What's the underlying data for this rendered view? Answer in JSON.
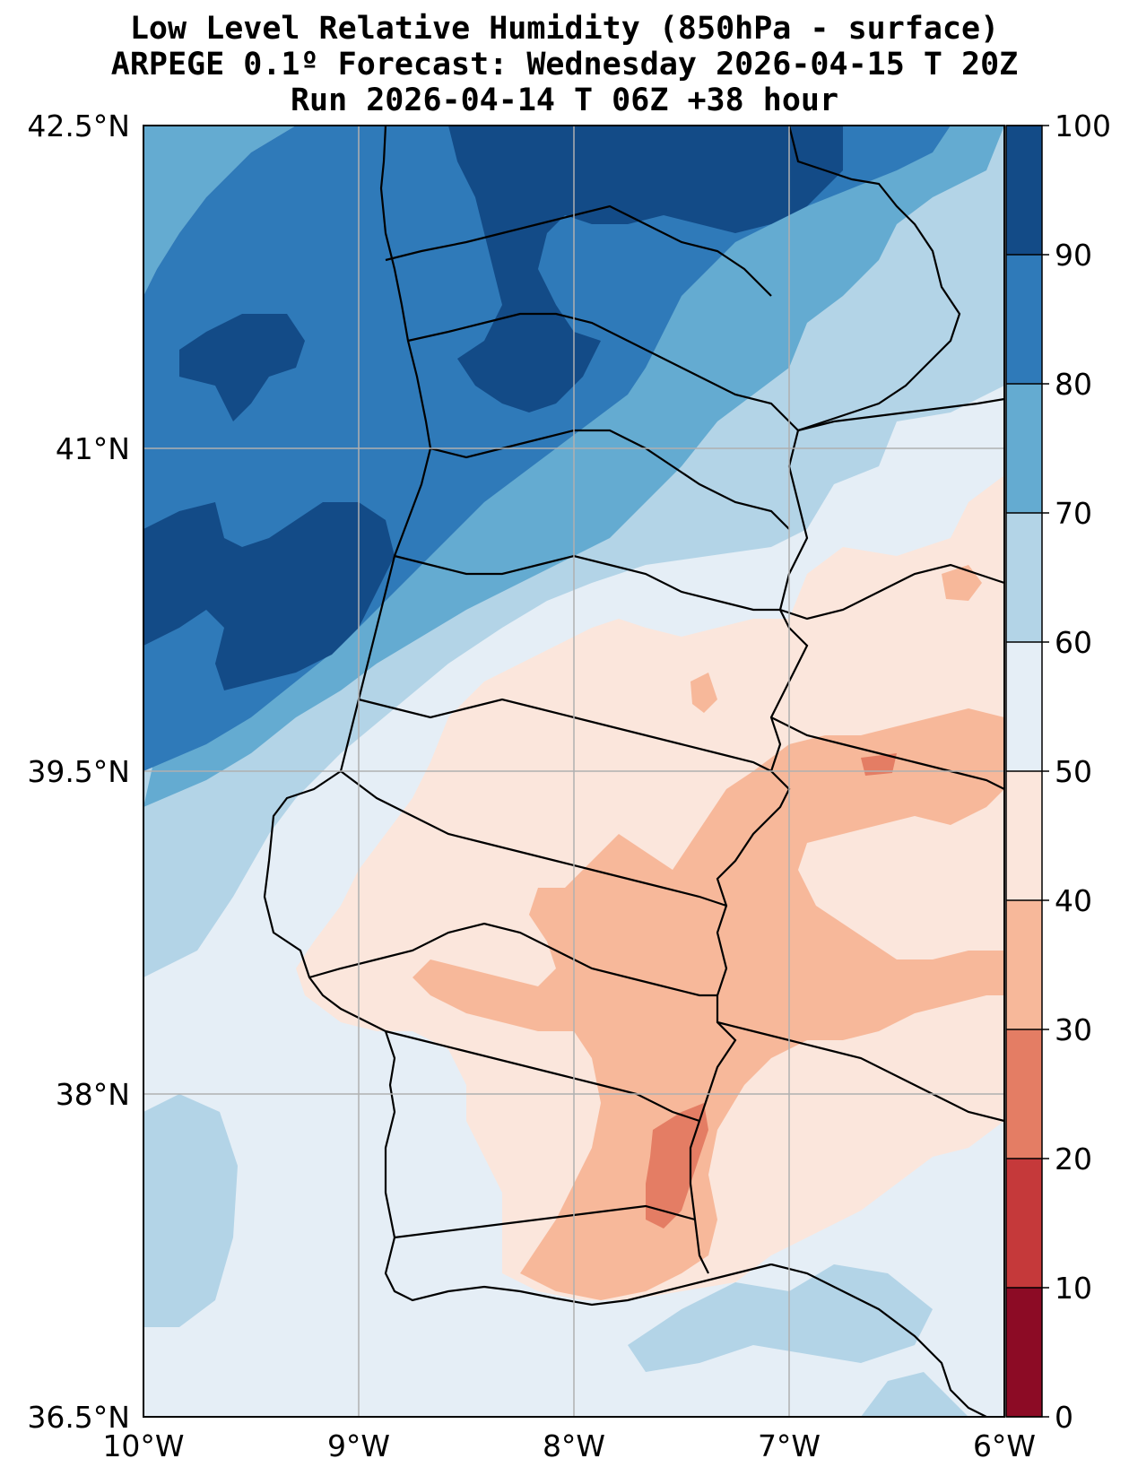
{
  "title": {
    "line1": "Low Level Relative Humidity (850hPa - surface)",
    "line2": "ARPEGE 0.1º Forecast: Wednesday 2026-04-15 T 20Z",
    "line3": "Run 2026-04-14 T 06Z +38 hour"
  },
  "axes": {
    "lat_ticks": [
      "42.5°N",
      "41°N",
      "39.5°N",
      "38°N",
      "36.5°N"
    ],
    "lon_ticks": [
      "10°W",
      "9°W",
      "8°W",
      "7°W",
      "6°W"
    ]
  },
  "colorbar": {
    "ticks": [
      "100",
      "90",
      "80",
      "70",
      "60",
      "50",
      "40",
      "30",
      "20",
      "10",
      "0"
    ],
    "colors": [
      "#134b87",
      "#2f7ab9",
      "#64abd1",
      "#b3d4e7",
      "#e5eef6",
      "#fbe6dc",
      "#f7b89a",
      "#e47d64",
      "#c5393a",
      "#8c0b25"
    ]
  },
  "map_colors": {
    "rh_90_100": "#134b87",
    "rh_80_90": "#2f7ab9",
    "rh_70_80": "#64abd1",
    "rh_60_70": "#b3d4e7",
    "rh_50_60": "#e5eef6",
    "rh_40_50": "#fbe6dc",
    "rh_30_40": "#f7b89a",
    "rh_20_30": "#e47d64"
  }
}
